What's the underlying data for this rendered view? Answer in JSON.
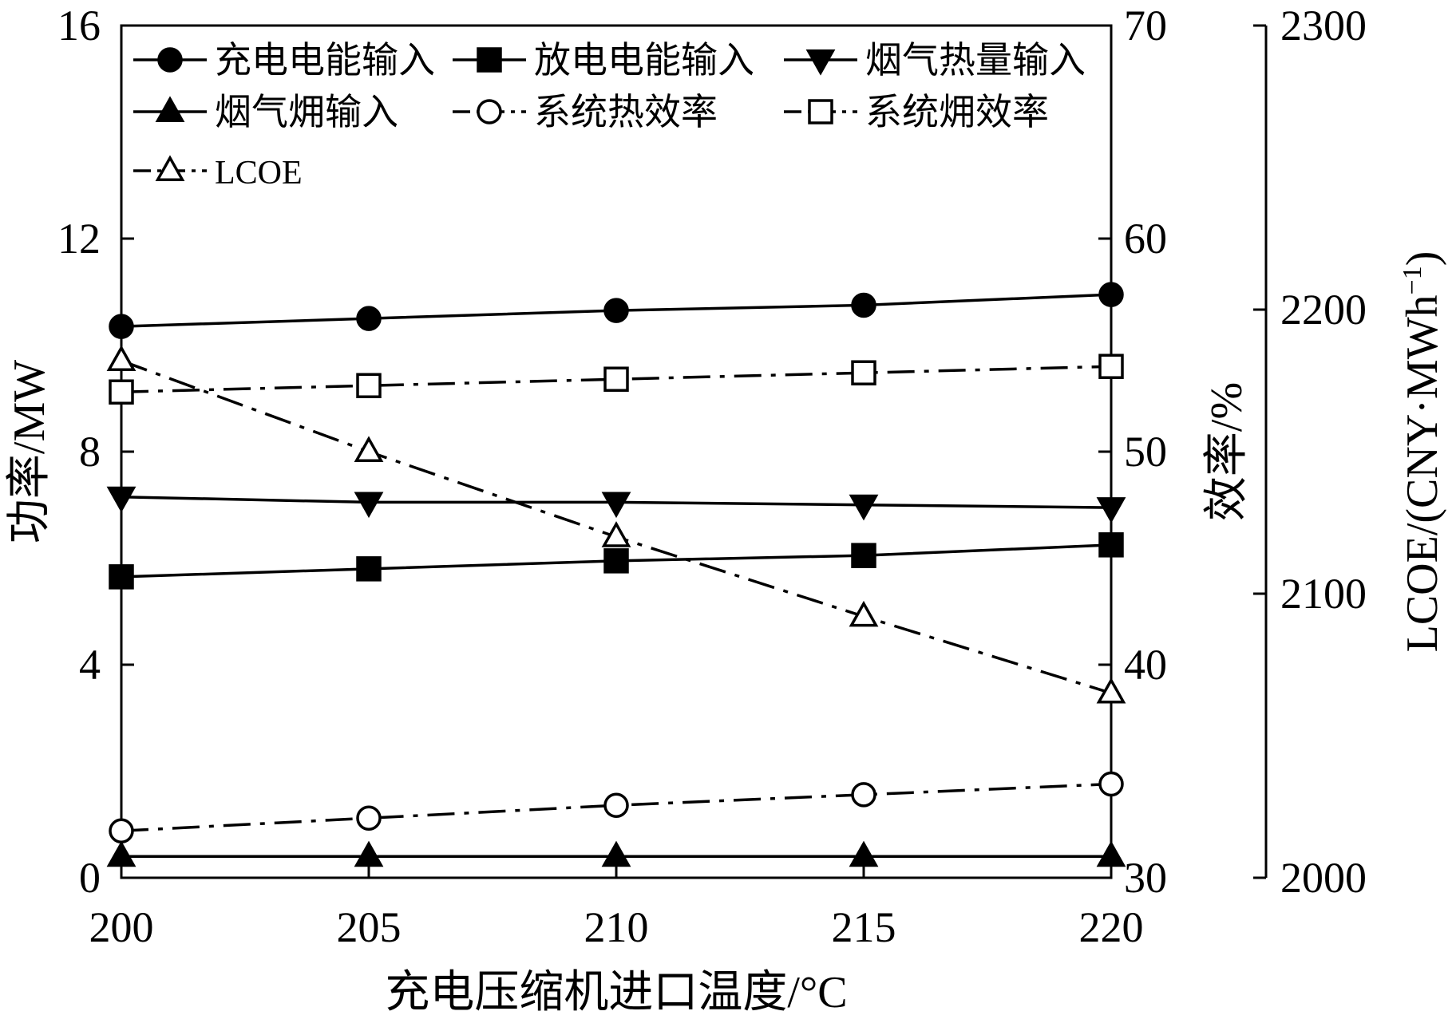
{
  "chart_data": {
    "type": "line",
    "x": [
      200,
      205,
      210,
      215,
      220
    ],
    "xlabel": "充电压缩机进口温度/°C",
    "x_ticks": [
      "200",
      "205",
      "210",
      "215",
      "220"
    ],
    "xlim": [
      200,
      220
    ],
    "axes": {
      "left": {
        "label": "功率/MW",
        "lim": [
          0,
          16
        ],
        "ticks": [
          "0",
          "4",
          "8",
          "12",
          "16"
        ]
      },
      "right": {
        "label": "效率/%",
        "lim": [
          30,
          70
        ],
        "ticks": [
          "30",
          "40",
          "50",
          "60",
          "70"
        ]
      },
      "right_outer": {
        "label": "LCOE/(CNY·MWh",
        "label_sup": "−1",
        "label_end": ")",
        "lim": [
          2000,
          2300
        ],
        "ticks": [
          "2000",
          "2100",
          "2200",
          "2300"
        ]
      }
    },
    "series": [
      {
        "name": "充电电能输入",
        "axis": "left",
        "marker": "circle-filled",
        "line": "solid",
        "values": [
          10.35,
          10.5,
          10.65,
          10.75,
          10.95
        ]
      },
      {
        "name": "放电电能输入",
        "axis": "left",
        "marker": "square-filled",
        "line": "solid",
        "values": [
          5.65,
          5.8,
          5.95,
          6.05,
          6.25
        ]
      },
      {
        "name": "烟气热量输入",
        "axis": "left",
        "marker": "triangle-down-filled",
        "line": "solid",
        "values": [
          7.15,
          7.05,
          7.05,
          7.0,
          6.95
        ]
      },
      {
        "name": "烟气㶲输入",
        "axis": "left",
        "marker": "triangle-up-filled",
        "line": "solid",
        "values": [
          0.4,
          0.4,
          0.4,
          0.4,
          0.4
        ]
      },
      {
        "name": "系统热效率",
        "axis": "right",
        "marker": "circle-open",
        "line": "dashdot",
        "values": [
          32.2,
          32.8,
          33.4,
          33.9,
          34.4
        ]
      },
      {
        "name": "系统㶲效率",
        "axis": "right",
        "marker": "square-open",
        "line": "dashdot",
        "values": [
          52.8,
          53.1,
          53.4,
          53.7,
          54.0
        ]
      },
      {
        "name": "LCOE",
        "axis": "right_outer",
        "marker": "triangle-up-open",
        "line": "dashdot",
        "values": [
          2182,
          2150,
          2120,
          2092,
          2065
        ]
      }
    ],
    "legend": {
      "placement": "top-left",
      "columns": 3
    },
    "grid": false
  }
}
